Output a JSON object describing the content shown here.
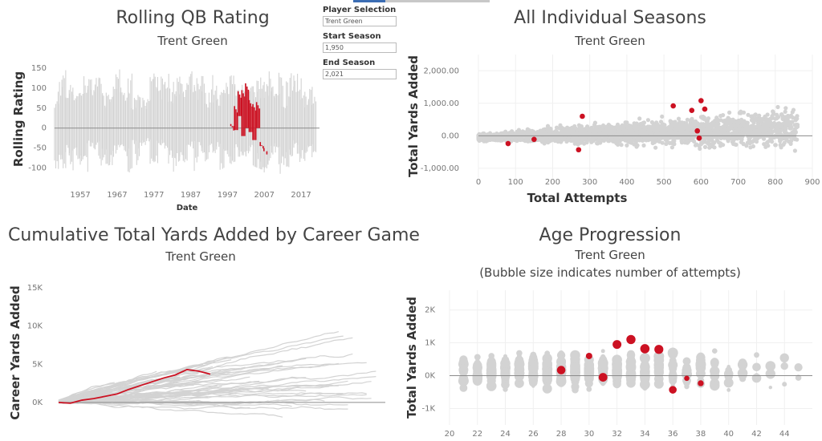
{
  "colors": {
    "highlight": "#cc1122",
    "others": "#d3d3d3",
    "axis": "#999999",
    "zero": "#8c8c8c"
  },
  "filters": {
    "player_label": "Player Selection",
    "player_value": "Trent Green",
    "start_label": "Start Season",
    "start_value": "1,950",
    "end_label": "End Season",
    "end_value": "2,021"
  },
  "chart_data": [
    {
      "type": "line",
      "title": "Rolling QB Rating",
      "subtitle": "Trent Green",
      "xlabel": "Date",
      "ylabel": "Rolling Rating",
      "x_ticks": [
        "1957",
        "1967",
        "1977",
        "1987",
        "1997",
        "2007",
        "2017"
      ],
      "y_ticks": [
        "150",
        "100",
        "50",
        "0",
        "-50",
        "-100"
      ],
      "xlim": [
        1950,
        2022
      ],
      "ylim": [
        -125,
        170
      ],
      "background_range": [
        -120,
        165
      ],
      "highlight": {
        "name": "Trent Green",
        "seasons": [
          1998,
          1999,
          2000,
          2001,
          2002,
          2003,
          2004,
          2005,
          2006,
          2007
        ],
        "high": [
          10,
          55,
          92,
          95,
          112,
          70,
          60,
          65,
          -35,
          -50
        ],
        "low": [
          5,
          -5,
          30,
          -20,
          0,
          -10,
          -30,
          0,
          -45,
          -58
        ]
      }
    },
    {
      "type": "scatter",
      "title": "All Individual Seasons",
      "subtitle": "Trent Green",
      "xlabel": "Total Attempts",
      "ylabel": "Total Yards Added",
      "x_ticks": [
        "0",
        "100",
        "200",
        "300",
        "400",
        "500",
        "600",
        "700",
        "800",
        "900"
      ],
      "y_ticks": [
        "2,000.00",
        "1,000.00",
        "0.00",
        "-1,000.00"
      ],
      "xlim": [
        0,
        900
      ],
      "ylim": [
        -1300,
        2500
      ],
      "highlight": {
        "name": "Trent Green",
        "x": [
          80,
          150,
          270,
          280,
          525,
          575,
          590,
          595,
          600,
          610
        ],
        "y": [
          -240,
          -110,
          -430,
          600,
          920,
          780,
          150,
          -70,
          1080,
          820
        ]
      }
    },
    {
      "type": "line",
      "title": "Cumulative Total Yards Added by Career Game",
      "subtitle": "Trent Green",
      "xlabel": "",
      "ylabel": "Career Yards Added",
      "y_ticks": [
        "15K",
        "10K",
        "5K",
        "0K"
      ],
      "ylim": [
        -4000,
        17000
      ],
      "highlight": {
        "name": "Trent Green",
        "games": [
          0,
          10,
          20,
          30,
          40,
          50,
          60,
          70,
          80,
          90,
          100,
          110,
          120,
          130
        ],
        "values": [
          0,
          -100,
          300,
          500,
          800,
          1100,
          1700,
          2200,
          2700,
          3200,
          3600,
          4300,
          4100,
          3700
        ]
      }
    },
    {
      "type": "scatter",
      "title": "Age Progression",
      "subtitle": "Trent Green",
      "note": "(Bubble size indicates number of attempts)",
      "xlabel": "",
      "ylabel": "Total Yards Added",
      "x_ticks": [
        "20",
        "22",
        "24",
        "26",
        "28",
        "30",
        "32",
        "34",
        "36",
        "38",
        "40",
        "42",
        "44"
      ],
      "y_ticks": [
        "2K",
        "1K",
        "0K",
        "-1K"
      ],
      "xlim": [
        20,
        46
      ],
      "ylim": [
        -1500,
        2600
      ],
      "highlight": {
        "name": "Trent Green",
        "age": [
          28,
          30,
          31,
          32,
          33,
          34,
          35,
          36,
          37,
          38
        ],
        "value": [
          170,
          600,
          -50,
          950,
          1100,
          820,
          800,
          -430,
          -80,
          -230
        ],
        "size": [
          520,
          300,
          540,
          560,
          600,
          620,
          590,
          420,
          200,
          250
        ]
      }
    }
  ]
}
